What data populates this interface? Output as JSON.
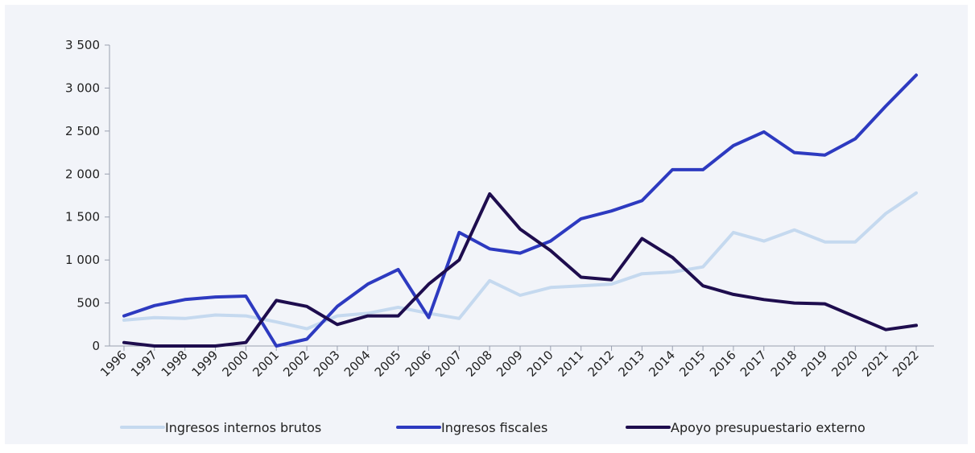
{
  "chart_data": {
    "type": "line",
    "title": "",
    "xlabel": "",
    "ylabel": "",
    "ylim": [
      0,
      3500
    ],
    "yticks": [
      0,
      500,
      1000,
      1500,
      2000,
      2500,
      3000,
      3500
    ],
    "ytick_labels": [
      "0",
      "500",
      "1 000",
      "1 500",
      "2 000",
      "2 500",
      "3 000",
      "3 500"
    ],
    "x": [
      "1996",
      "1997",
      "1998",
      "1999",
      "2000",
      "2001",
      "2002",
      "2003",
      "2004",
      "2005",
      "2006",
      "2007",
      "2008",
      "2009",
      "2010",
      "2011",
      "2012",
      "2013",
      "2014",
      "2015",
      "2016",
      "2017",
      "2018",
      "2019",
      "2020",
      "2021",
      "2022"
    ],
    "grid": false,
    "legend_position": "bottom",
    "series": [
      {
        "name": "Ingresos internos brutos",
        "color": "#c5d9ef",
        "values": [
          300,
          330,
          320,
          360,
          350,
          280,
          200,
          350,
          380,
          450,
          380,
          320,
          760,
          590,
          680,
          700,
          720,
          840,
          860,
          920,
          1320,
          1220,
          1350,
          1210,
          1210,
          1540,
          1780
        ]
      },
      {
        "name": "Ingresos fiscales",
        "color": "#2d3ac0",
        "values": [
          350,
          470,
          540,
          570,
          580,
          0,
          80,
          460,
          720,
          890,
          330,
          1320,
          1130,
          1080,
          1220,
          1480,
          1570,
          1690,
          2050,
          2050,
          2330,
          2490,
          2250,
          2220,
          2410,
          2790,
          3150
        ]
      },
      {
        "name": "Apoyo presupuestario externo",
        "color": "#1e0d4e",
        "values": [
          40,
          0,
          0,
          0,
          40,
          530,
          460,
          250,
          350,
          350,
          720,
          1000,
          1770,
          1360,
          1110,
          800,
          770,
          1250,
          1030,
          700,
          600,
          540,
          500,
          490,
          340,
          190,
          240
        ]
      }
    ]
  }
}
